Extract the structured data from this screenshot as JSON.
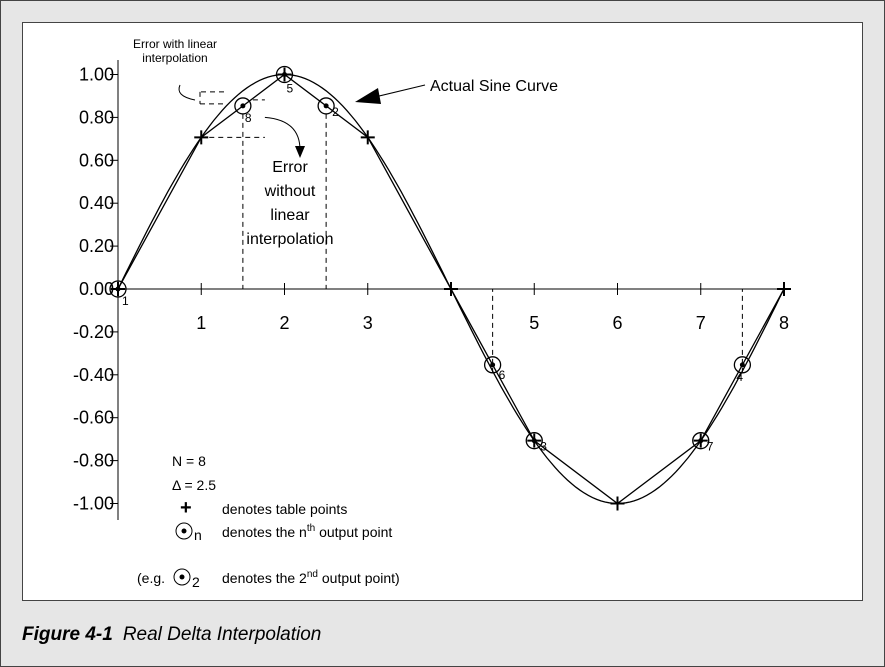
{
  "figure": {
    "y_tick_labels": [
      "1.00",
      "0.80",
      "0.60",
      "0.40",
      "0.20",
      "0.00",
      "-0.20",
      "-0.40",
      "-0.60",
      "-0.80",
      "-1.00"
    ],
    "x_tick_labels": [
      "1",
      "2",
      "3",
      "5",
      "6",
      "7",
      "8"
    ],
    "point_labels": [
      "1",
      "2",
      "3",
      "4",
      "5",
      "6",
      "7",
      "8"
    ],
    "annotations": {
      "error_with": [
        "Error with linear",
        "interpolation"
      ],
      "error_without": [
        "Error",
        "without",
        "linear",
        "interpolation"
      ],
      "actual": "Actual Sine Curve"
    },
    "legend": {
      "n": "N = 8",
      "delta": "Δ = 2.5",
      "table_symbol": "+",
      "table_text": "denotes table points",
      "output_sub": "n",
      "output_text": "denotes the n",
      "output_sup": "th",
      "output_tail": " output point",
      "example_open": "(e.g.",
      "example_sub": "2",
      "example_text": "denotes the 2",
      "example_sup": "nd",
      "example_tail": " output point)"
    },
    "caption": {
      "number": "Figure 4-1",
      "title": "Real Delta Interpolation"
    }
  }
}
